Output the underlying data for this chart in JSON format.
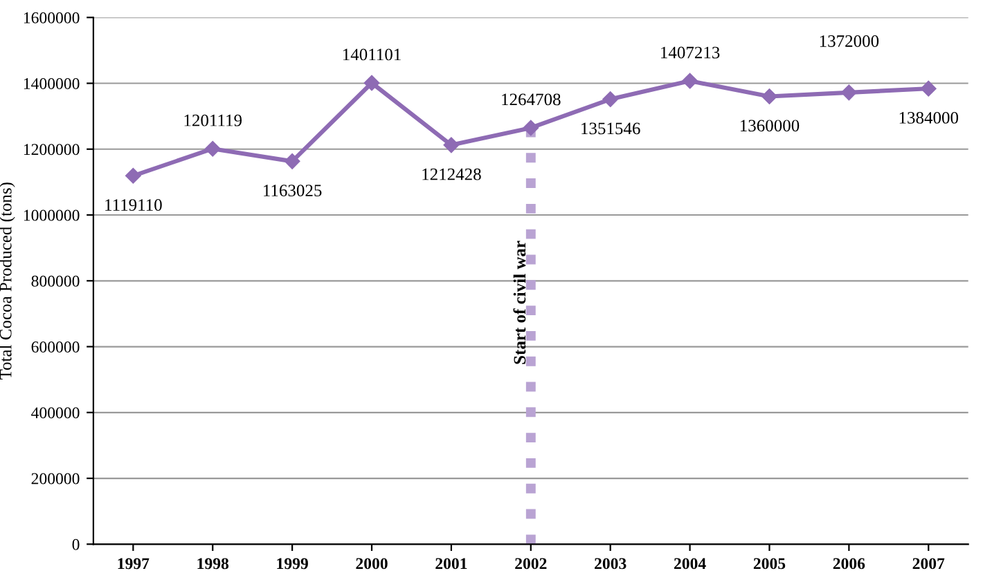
{
  "chart_data": {
    "type": "line",
    "ylabel": "Total Cocoa Produced (tons)",
    "categories": [
      "1997",
      "1998",
      "1999",
      "2000",
      "2001",
      "2002",
      "2003",
      "2004",
      "2005",
      "2006",
      "2007"
    ],
    "series": [
      {
        "color": "#8e6bb4",
        "values": [
          1119110,
          1201119,
          1163025,
          1401101,
          1212428,
          1264708,
          1351546,
          1407213,
          1360000,
          1372000,
          1384000
        ]
      }
    ],
    "ylim": [
      0,
      1600000
    ],
    "yticks": [
      0,
      200000,
      400000,
      600000,
      800000,
      1000000,
      1200000,
      1400000,
      1600000
    ],
    "grid": "y",
    "marker": "diamond",
    "line_style": "solid",
    "data_labels": true,
    "ref_lines": [
      {
        "axis": "x",
        "value": "2002",
        "label": "Start of civil war",
        "color": "#b9a3d3",
        "line_style": "dotted"
      }
    ]
  }
}
